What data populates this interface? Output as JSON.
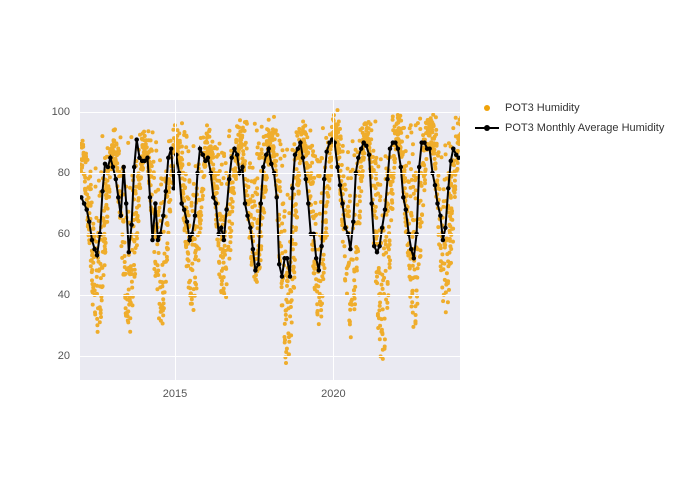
{
  "chart": {
    "type": "scatter+line",
    "background_color": "#ffffff",
    "plot_bgcolor": "#eaeaf2",
    "grid_color": "#ffffff",
    "tick_font_color": "#555555",
    "tick_fontsize": 11,
    "xlim": [
      2012,
      2024
    ],
    "ylim": [
      12,
      104
    ],
    "yticks": [
      20,
      40,
      60,
      80,
      100
    ],
    "xticks": [
      2015,
      2020
    ],
    "x_tick_labels": [
      "2015",
      "2020"
    ],
    "y_tick_labels": [
      "20",
      "40",
      "60",
      "80",
      "100"
    ],
    "legend": {
      "items": [
        {
          "label": "POT3 Humidity",
          "type": "dot",
          "color": "#f0a30a"
        },
        {
          "label": "POT3 Monthly Average Humidity",
          "type": "line+dot",
          "color": "#000000"
        }
      ]
    },
    "scatter": {
      "color": "#f0a30a",
      "marker_size": 4,
      "opacity": 0.85,
      "pattern": "seasonal_humidity_dense",
      "approx_point_count": 2600,
      "y_envelope_top": [
        92,
        95,
        96,
        96,
        96,
        97,
        97,
        98,
        100,
        100,
        100,
        100,
        100
      ],
      "y_envelope_bottom_summer": [
        25,
        28,
        30,
        35,
        38,
        42,
        16,
        30,
        25,
        18,
        30,
        35,
        50
      ]
    },
    "line": {
      "color": "#000000",
      "width": 2,
      "marker_size": 4.5,
      "x": [
        2012.04,
        2012.13,
        2012.21,
        2012.29,
        2012.38,
        2012.46,
        2012.54,
        2012.63,
        2012.71,
        2012.79,
        2012.88,
        2012.96,
        2013.04,
        2013.13,
        2013.21,
        2013.29,
        2013.38,
        2013.46,
        2013.54,
        2013.63,
        2013.71,
        2013.79,
        2013.88,
        2013.96,
        2014.04,
        2014.13,
        2014.21,
        2014.29,
        2014.38,
        2014.46,
        2014.54,
        2014.63,
        2014.71,
        2014.79,
        2014.88,
        2014.96,
        2015.04,
        2015.13,
        2015.21,
        2015.29,
        2015.38,
        2015.46,
        2015.54,
        2015.63,
        2015.71,
        2015.79,
        2015.88,
        2015.96,
        2016.04,
        2016.13,
        2016.21,
        2016.29,
        2016.38,
        2016.46,
        2016.54,
        2016.63,
        2016.71,
        2016.79,
        2016.88,
        2016.96,
        2017.04,
        2017.13,
        2017.21,
        2017.29,
        2017.38,
        2017.46,
        2017.54,
        2017.63,
        2017.71,
        2017.79,
        2017.88,
        2017.96,
        2018.04,
        2018.13,
        2018.21,
        2018.29,
        2018.38,
        2018.46,
        2018.54,
        2018.63,
        2018.71,
        2018.79,
        2018.88,
        2018.96,
        2019.04,
        2019.13,
        2019.21,
        2019.29,
        2019.38,
        2019.46,
        2019.54,
        2019.63,
        2019.71,
        2019.79,
        2019.88,
        2019.96,
        2020.04,
        2020.13,
        2020.21,
        2020.29,
        2020.38,
        2020.46,
        2020.54,
        2020.63,
        2020.71,
        2020.79,
        2020.88,
        2020.96,
        2021.04,
        2021.13,
        2021.21,
        2021.29,
        2021.38,
        2021.46,
        2021.54,
        2021.63,
        2021.71,
        2021.79,
        2021.88,
        2021.96,
        2022.04,
        2022.13,
        2022.21,
        2022.29,
        2022.38,
        2022.46,
        2022.54,
        2022.63,
        2022.71,
        2022.79,
        2022.88,
        2022.96,
        2023.04,
        2023.13,
        2023.21,
        2023.29,
        2023.38,
        2023.46,
        2023.54,
        2023.63,
        2023.71,
        2023.79,
        2023.88,
        2023.96
      ],
      "y": [
        72,
        70,
        68,
        64,
        58,
        55,
        53,
        60,
        74,
        83,
        82,
        85,
        82,
        78,
        72,
        66,
        82,
        70,
        54,
        63,
        82,
        91,
        85,
        84,
        84,
        85,
        72,
        58,
        70,
        58,
        60,
        66,
        74,
        85,
        88,
        75,
        86,
        80,
        70,
        68,
        64,
        58,
        60,
        66,
        80,
        88,
        86,
        84,
        85,
        80,
        72,
        70,
        60,
        62,
        58,
        68,
        78,
        85,
        88,
        86,
        80,
        82,
        70,
        66,
        62,
        55,
        48,
        50,
        70,
        82,
        86,
        88,
        83,
        80,
        72,
        50,
        46,
        52,
        52,
        46,
        75,
        86,
        88,
        90,
        85,
        78,
        70,
        60,
        60,
        52,
        48,
        56,
        78,
        87,
        90,
        91,
        90,
        82,
        76,
        70,
        62,
        60,
        55,
        64,
        80,
        85,
        88,
        90,
        89,
        86,
        70,
        56,
        54,
        56,
        62,
        68,
        78,
        88,
        90,
        90,
        88,
        82,
        72,
        68,
        60,
        55,
        52,
        60,
        82,
        90,
        90,
        88,
        88,
        80,
        76,
        70,
        66,
        58,
        62,
        75,
        84,
        88,
        86,
        85
      ]
    }
  }
}
